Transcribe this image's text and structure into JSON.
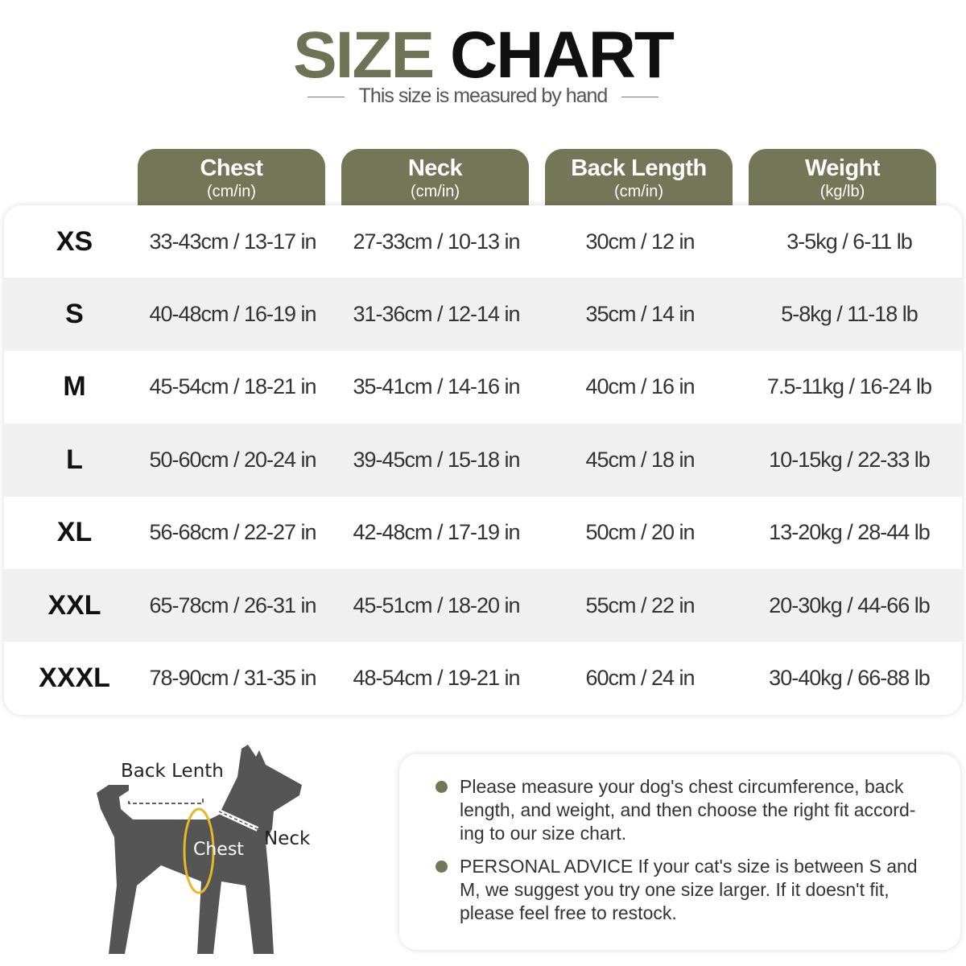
{
  "title": {
    "part1": "SIZE",
    "part2": "CHART",
    "subtitle": "This size is measured by hand"
  },
  "colors": {
    "accent": "#737657",
    "dog": "#555555",
    "chest_ring": "#e5b82a"
  },
  "headers": [
    {
      "label": "Chest",
      "unit": "(cm/in)"
    },
    {
      "label": "Neck",
      "unit": "(cm/in)"
    },
    {
      "label": "Back Length",
      "unit": "(cm/in)"
    },
    {
      "label": "Weight",
      "unit": "(kg/lb)"
    }
  ],
  "rows": [
    {
      "size": "XS",
      "chest": "33-43cm / 13-17 in",
      "neck": "27-33cm / 10-13 in",
      "back": "30cm / 12 in",
      "weight": "3-5kg / 6-11 lb"
    },
    {
      "size": "S",
      "chest": "40-48cm / 16-19 in",
      "neck": "31-36cm / 12-14 in",
      "back": "35cm / 14 in",
      "weight": "5-8kg / 11-18 lb"
    },
    {
      "size": "M",
      "chest": "45-54cm / 18-21 in",
      "neck": "35-41cm / 14-16 in",
      "back": "40cm / 16 in",
      "weight": "7.5-11kg / 16-24 lb"
    },
    {
      "size": "L",
      "chest": "50-60cm / 20-24 in",
      "neck": "39-45cm / 15-18 in",
      "back": "45cm / 18 in",
      "weight": "10-15kg / 22-33 lb"
    },
    {
      "size": "XL",
      "chest": "56-68cm / 22-27 in",
      "neck": "42-48cm / 17-19 in",
      "back": "50cm / 20 in",
      "weight": "13-20kg / 28-44 lb"
    },
    {
      "size": "XXL",
      "chest": "65-78cm / 26-31 in",
      "neck": "45-51cm / 18-20 in",
      "back": "55cm / 22 in",
      "weight": "20-30kg / 44-66 lb"
    },
    {
      "size": "XXXL",
      "chest": "78-90cm / 31-35 in",
      "neck": "48-54cm / 19-21 in",
      "back": "60cm / 24 in",
      "weight": "30-40kg / 66-88 lb"
    }
  ],
  "diagram": {
    "back_label": "Back Lenth",
    "chest_label": "Chest",
    "neck_label": "Neck"
  },
  "notes": [
    "Please measure your dog's chest circumference, back length, and weight, and then choose the right fit accord-ing to our size chart.",
    "PERSONAL ADVICE If your cat's size is between S and M, we suggest you try one size larger. If it doesn't fit, please feel free to restock."
  ]
}
